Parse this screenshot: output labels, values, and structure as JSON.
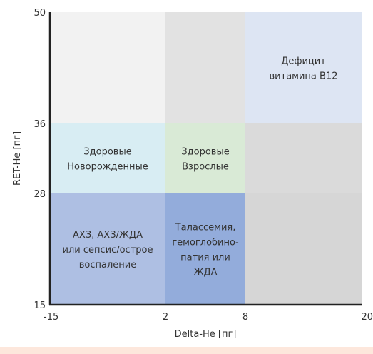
{
  "colors": {
    "background": "#fde7dc",
    "panel": "#ffffff",
    "axis": "#222222",
    "text": "#333333"
  },
  "chart_data": {
    "type": "heatmap",
    "title": "",
    "xlabel": "Delta-He [пг]",
    "ylabel": "RET-He [пг]",
    "x_ticks": [
      -15,
      2,
      8,
      20
    ],
    "y_ticks": [
      15,
      28,
      36,
      50
    ],
    "xlim": [
      -15,
      20
    ],
    "ylim": [
      15,
      50
    ],
    "x_scale": "piecewise-categorical",
    "y_scale": "piecewise-categorical",
    "grid": false,
    "regions": [
      {
        "x_range": [
          -15,
          2
        ],
        "y_range": [
          36,
          50
        ],
        "color": "#f2f2f2",
        "label": []
      },
      {
        "x_range": [
          2,
          8
        ],
        "y_range": [
          36,
          50
        ],
        "color": "#e2e2e2",
        "label": []
      },
      {
        "x_range": [
          8,
          20
        ],
        "y_range": [
          36,
          50
        ],
        "color": "#dde5f3",
        "label": [
          "Дефицит",
          "витамина B12"
        ]
      },
      {
        "x_range": [
          -15,
          2
        ],
        "y_range": [
          28,
          36
        ],
        "color": "#d8edf3",
        "label": [
          "Здоровые",
          "Новорожденные"
        ]
      },
      {
        "x_range": [
          2,
          8
        ],
        "y_range": [
          28,
          36
        ],
        "color": "#d9ead6",
        "label": [
          "Здоровые",
          "Взрослые"
        ]
      },
      {
        "x_range": [
          8,
          20
        ],
        "y_range": [
          28,
          36
        ],
        "color": "#dadada",
        "label": []
      },
      {
        "x_range": [
          -15,
          2
        ],
        "y_range": [
          15,
          28
        ],
        "color": "#aebfe3",
        "label": [
          "АХЗ, АХЗ/ЖДА",
          "или сепсис/острое",
          "воспаление"
        ]
      },
      {
        "x_range": [
          2,
          8
        ],
        "y_range": [
          15,
          28
        ],
        "color": "#93acdb",
        "label": [
          "Талассемия,",
          "гемоглобино-",
          "патия или",
          "ЖДА"
        ]
      },
      {
        "x_range": [
          8,
          20
        ],
        "y_range": [
          15,
          28
        ],
        "color": "#d6d6d6",
        "label": []
      }
    ]
  }
}
